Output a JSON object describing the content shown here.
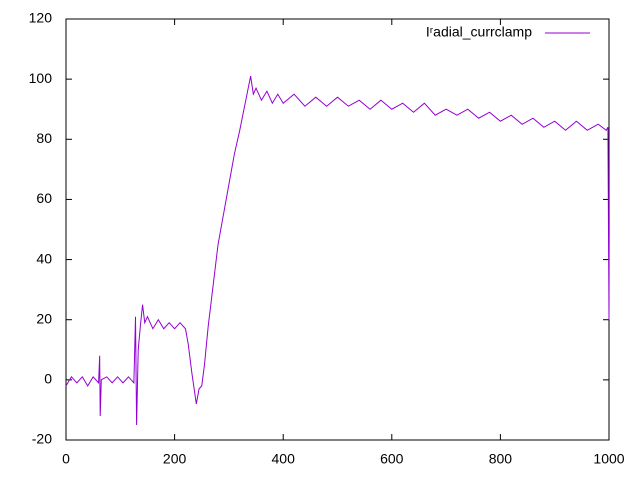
{
  "chart_data": {
    "type": "line",
    "x": [
      0,
      10,
      20,
      30,
      40,
      50,
      60,
      62,
      63,
      65,
      75,
      85,
      95,
      105,
      115,
      125,
      128,
      130,
      133,
      137,
      141,
      145,
      150,
      160,
      170,
      180,
      190,
      200,
      210,
      220,
      225,
      232,
      240,
      245,
      250,
      255,
      262,
      270,
      280,
      290,
      300,
      310,
      320,
      330,
      340,
      345,
      350,
      360,
      370,
      380,
      390,
      400,
      420,
      440,
      460,
      480,
      500,
      520,
      540,
      560,
      580,
      600,
      620,
      640,
      660,
      680,
      700,
      720,
      740,
      760,
      780,
      800,
      820,
      840,
      860,
      880,
      900,
      920,
      940,
      960,
      980,
      995,
      998,
      1000
    ],
    "series": [
      {
        "name": "Iʳadial_currclamp",
        "color": "#9400d3",
        "values": [
          -2,
          1,
          -1,
          1,
          -2,
          1,
          -1,
          8,
          -12,
          0,
          1,
          -1,
          1,
          -1,
          1,
          -1,
          21,
          -15,
          10,
          18,
          25,
          19,
          21,
          17,
          20,
          17,
          19,
          17,
          19,
          17,
          12,
          2,
          -8,
          -3,
          -2,
          5,
          18,
          30,
          45,
          55,
          65,
          75,
          83,
          92,
          101,
          95,
          97,
          93,
          96,
          92,
          95,
          92,
          95,
          91,
          94,
          91,
          94,
          91,
          93,
          90,
          93,
          90,
          92,
          89,
          92,
          88,
          90,
          88,
          90,
          87,
          89,
          86,
          88,
          85,
          87,
          84,
          86,
          83,
          86,
          83,
          85,
          83,
          84,
          20
        ]
      }
    ],
    "xlim": [
      0,
      1000
    ],
    "xticks": [
      0,
      200,
      400,
      600,
      800,
      1000
    ],
    "ylim": [
      -20,
      120
    ],
    "yticks": [
      -20,
      0,
      20,
      40,
      60,
      80,
      100,
      120
    ],
    "legend": "top-right"
  }
}
